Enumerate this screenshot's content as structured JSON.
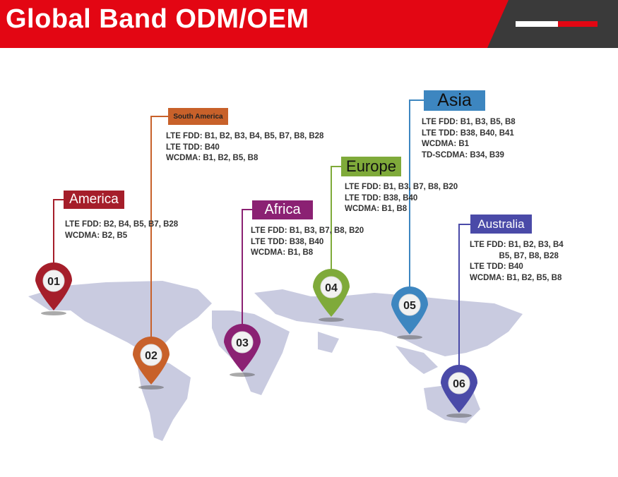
{
  "header": {
    "title": "Global Band ODM/OEM"
  },
  "regions": [
    {
      "id": "01",
      "name": "America",
      "color": "#a51e2a",
      "lines": [
        "LTE FDD: B2, B4, B5, B7, B28",
        "WCDMA: B2, B5"
      ]
    },
    {
      "id": "02",
      "name": "South America",
      "color": "#c8612a",
      "lines": [
        "LTE FDD: B1, B2, B3, B4, B5, B7, B8, B28",
        "LTE TDD: B40",
        "WCDMA: B1, B2, B5, B8"
      ]
    },
    {
      "id": "03",
      "name": "Africa",
      "color": "#8b2173",
      "lines": [
        "LTE FDD: B1, B3, B7, B8, B20",
        "LTE TDD: B38, B40",
        "WCDMA: B1, B8"
      ]
    },
    {
      "id": "04",
      "name": "Europe",
      "color": "#7faa3a",
      "lines": [
        "LTE FDD: B1, B3, B7, B8, B20",
        "LTE TDD: B38, B40",
        "WCDMA: B1, B8"
      ]
    },
    {
      "id": "05",
      "name": "Asia",
      "color": "#3d86c0",
      "lines": [
        "LTE FDD: B1, B3, B5, B8",
        "LTE TDD: B38, B40, B41",
        "WCDMA: B1",
        "TD-SCDMA: B34, B39"
      ]
    },
    {
      "id": "06",
      "name": "Australia",
      "color": "#4a4aa8",
      "lines": [
        "LTE FDD: B1, B2, B3, B4",
        "             B5, B7, B8, B28",
        "LTE TDD: B40",
        "WCDMA: B1, B2, B5, B8"
      ]
    }
  ],
  "colors": {
    "header_red": "#e30613",
    "header_dark": "#3a3a3a",
    "map": "#c9cbe0"
  }
}
